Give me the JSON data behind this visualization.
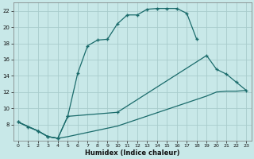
{
  "xlabel": "Humidex (Indice chaleur)",
  "background_color": "#c8e8e8",
  "grid_color": "#a8cccc",
  "line_color": "#1a6b6b",
  "xlim": [
    -0.5,
    23.5
  ],
  "ylim": [
    6,
    23
  ],
  "yticks": [
    8,
    10,
    12,
    14,
    16,
    18,
    20,
    22
  ],
  "xticks": [
    0,
    1,
    2,
    3,
    4,
    5,
    6,
    7,
    8,
    9,
    10,
    11,
    12,
    13,
    14,
    15,
    16,
    17,
    18,
    19,
    20,
    21,
    22,
    23
  ],
  "line1_x": [
    0,
    1,
    2,
    3,
    4,
    5,
    6,
    7,
    8,
    9,
    10,
    11,
    12,
    13,
    14,
    15,
    16,
    17,
    18,
    19,
    20,
    21,
    22,
    23
  ],
  "line1_y": [
    8.3,
    7.7,
    7.2,
    6.5,
    6.3,
    9.0,
    14.3,
    17.7,
    18.4,
    18.5,
    20.4,
    21.5,
    21.5,
    22.2,
    22.3,
    22.3,
    22.3,
    21.7,
    18.5,
    null,
    null,
    null,
    null,
    null
  ],
  "line2_x": [
    0,
    2,
    3,
    4,
    5,
    10,
    19,
    20,
    21,
    22,
    23
  ],
  "line2_y": [
    8.3,
    7.2,
    6.5,
    6.3,
    9.0,
    9.5,
    16.5,
    14.8,
    14.2,
    13.2,
    12.2
  ],
  "line3_x": [
    0,
    2,
    3,
    4,
    5,
    10,
    19,
    20,
    21,
    22,
    23
  ],
  "line3_y": [
    8.3,
    7.2,
    6.5,
    6.3,
    6.5,
    7.8,
    11.5,
    12.0,
    12.1,
    12.1,
    12.2
  ]
}
